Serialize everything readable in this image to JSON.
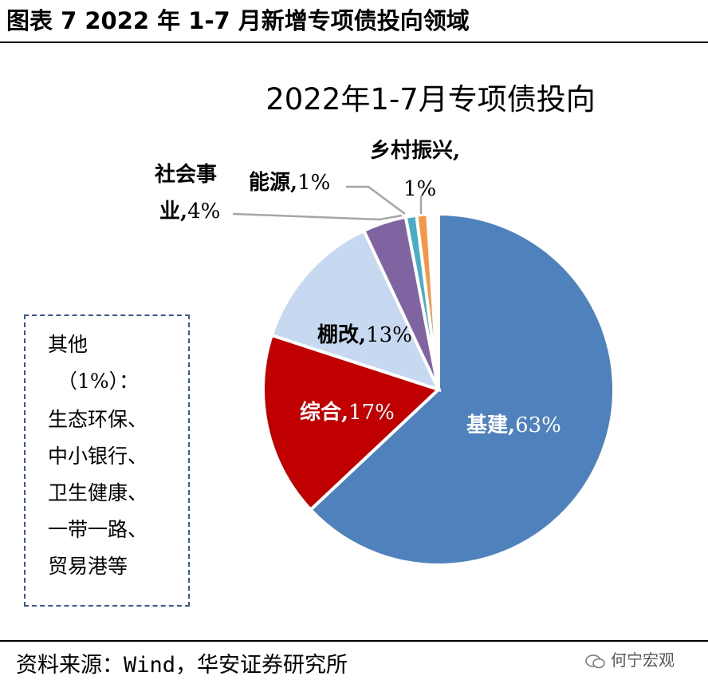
{
  "figure_title": "图表 7 2022 年 1-7 月新增专项债投向领域",
  "chart_data": {
    "type": "pie",
    "title": "2022年1-7月专项债投向",
    "unit": "%",
    "slices": [
      {
        "name": "基建",
        "value": 63,
        "color": "#4f81bd"
      },
      {
        "name": "综合",
        "value": 17,
        "color": "#c00000"
      },
      {
        "name": "棚改",
        "value": 13,
        "color": "#c6d9f1"
      },
      {
        "name": "社会事业",
        "value": 4,
        "color": "#8064a2"
      },
      {
        "name": "能源",
        "value": 1,
        "color": "#4bacc6"
      },
      {
        "name": "乡村振兴",
        "value": 1,
        "color": "#f79646"
      },
      {
        "name": "其他",
        "value": 1,
        "color": "#ffffff"
      }
    ],
    "labels": {
      "jijian": {
        "name": "基建",
        "pct": "63%"
      },
      "zonghe": {
        "name": "综合",
        "pct": "17%"
      },
      "penggai": {
        "name": "棚改",
        "pct": "13%"
      },
      "shehui_line1": "社会事",
      "shehui_line2_name": "业",
      "shehui_pct": "4%",
      "nengyuan": {
        "name": "能源",
        "pct": "1%"
      },
      "xiangcun_name": "乡村振兴,",
      "xiangcun_pct": "1%"
    }
  },
  "note": {
    "lines": [
      "其他",
      "（1%）：",
      "生态环保、",
      "中小银行、",
      "卫生健康、",
      "一带一路、",
      "贸易港等"
    ]
  },
  "source": "资料来源：Wind，华安证券研究所",
  "watermark": "何宁宏观"
}
